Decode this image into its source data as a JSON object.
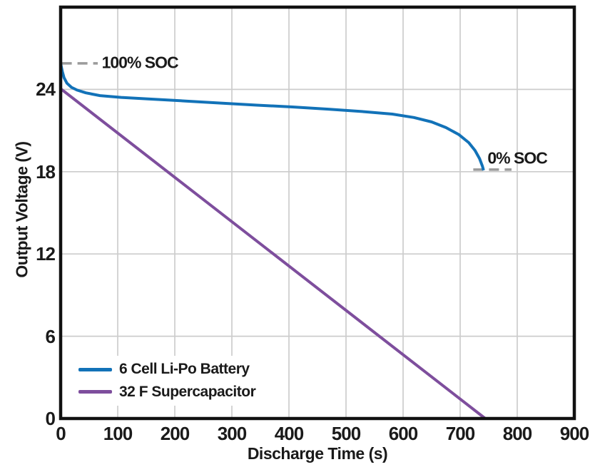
{
  "colors": {
    "background": "#ffffff",
    "text": "#1a1a1a",
    "frame": "#111111",
    "grid": "#cccccc",
    "annotation_dash": "#9b9b9b",
    "battery_blue": "#1272b8",
    "supercap_purple": "#7e4e9d"
  },
  "chart_data": {
    "type": "line",
    "title": "",
    "xlabel": "Discharge Time (s)",
    "ylabel": "Output Voltage (V)",
    "xlim": [
      0,
      900
    ],
    "ylim": [
      0,
      30
    ],
    "x_ticks": [
      0,
      100,
      200,
      300,
      400,
      500,
      600,
      700,
      800,
      900
    ],
    "y_ticks": [
      0,
      6,
      12,
      18,
      24
    ],
    "grid": true,
    "legend_position": "lower-left",
    "series": [
      {
        "name": "6 Cell Li-Po Battery",
        "color": "#1272b8",
        "points": [
          [
            0,
            25.9
          ],
          [
            3,
            25.3
          ],
          [
            6,
            24.85
          ],
          [
            11,
            24.45
          ],
          [
            19,
            24.15
          ],
          [
            29,
            23.95
          ],
          [
            44,
            23.75
          ],
          [
            69,
            23.55
          ],
          [
            106,
            23.42
          ],
          [
            156,
            23.3
          ],
          [
            219,
            23.15
          ],
          [
            281,
            23.0
          ],
          [
            344,
            22.85
          ],
          [
            406,
            22.72
          ],
          [
            469,
            22.56
          ],
          [
            531,
            22.38
          ],
          [
            581,
            22.2
          ],
          [
            619,
            21.95
          ],
          [
            650,
            21.63
          ],
          [
            675,
            21.22
          ],
          [
            698,
            20.7
          ],
          [
            715,
            20.12
          ],
          [
            726,
            19.55
          ],
          [
            734,
            18.95
          ],
          [
            739,
            18.4
          ],
          [
            741,
            18.1
          ]
        ]
      },
      {
        "name": "32 F Supercapacitor",
        "color": "#7e4e9d",
        "points": [
          [
            0,
            24.05
          ],
          [
            744,
            0
          ]
        ]
      }
    ],
    "annotations": [
      {
        "label": "100% SOC",
        "dash_v": 25.9,
        "dash_t": [
          2,
          65
        ],
        "text_t": 72,
        "text_v": 25.92
      },
      {
        "label": "0% SOC",
        "dash_v": 18.15,
        "dash_t": [
          723,
          790
        ],
        "text_t": 748,
        "text_v": 19.0
      }
    ]
  }
}
